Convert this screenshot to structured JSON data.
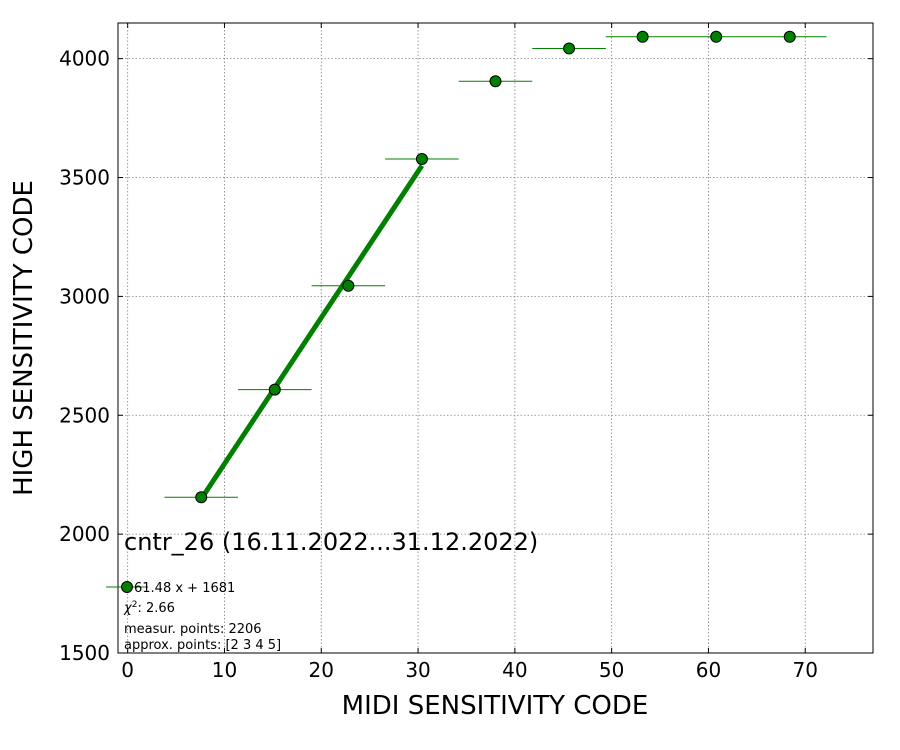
{
  "chart_data": {
    "type": "scatter",
    "title": "",
    "xlabel": "MIDI SENSITIVITY CODE",
    "ylabel": "HIGH SENSITIVITY CODE",
    "xlim": [
      -1,
      77
    ],
    "ylim": [
      1500,
      4150
    ],
    "xticks": [
      0,
      10,
      20,
      30,
      40,
      50,
      60,
      70
    ],
    "yticks": [
      1500,
      2000,
      2500,
      3000,
      3500,
      4000
    ],
    "grid": true,
    "colors": {
      "marker": "#008000",
      "marker_edge": "#000000",
      "fit_line": "#008000",
      "grid": "#808080"
    },
    "series": [
      {
        "name": "",
        "points": [
          {
            "x": 7.6,
            "y": 2155,
            "xerr": 3.8
          },
          {
            "x": 15.2,
            "y": 2608,
            "xerr": 3.8
          },
          {
            "x": 22.8,
            "y": 3045,
            "xerr": 3.8
          },
          {
            "x": 30.4,
            "y": 3578,
            "xerr": 3.8
          },
          {
            "x": 38.0,
            "y": 3905,
            "xerr": 3.8
          },
          {
            "x": 45.6,
            "y": 4043,
            "xerr": 3.8
          },
          {
            "x": 53.2,
            "y": 4092,
            "xerr": 3.8
          },
          {
            "x": 60.8,
            "y": 4092,
            "xerr": 3.8
          },
          {
            "x": 68.4,
            "y": 4092,
            "xerr": 3.8
          }
        ]
      }
    ],
    "fit_line": {
      "slope": 61.48,
      "intercept": 1681,
      "x": [
        7.6,
        30.4
      ]
    },
    "annotation": {
      "title": "cntr_26 (16.11.2022...31.12.2022)",
      "legend_label": "61.48 x + 1681",
      "chi2_prefix": "χ",
      "chi2_sup": "2",
      "chi2_value": ": 2.66",
      "measur_points": "measur. points: 2206",
      "approx_points": "approx. points: [2 3 4 5]"
    }
  }
}
